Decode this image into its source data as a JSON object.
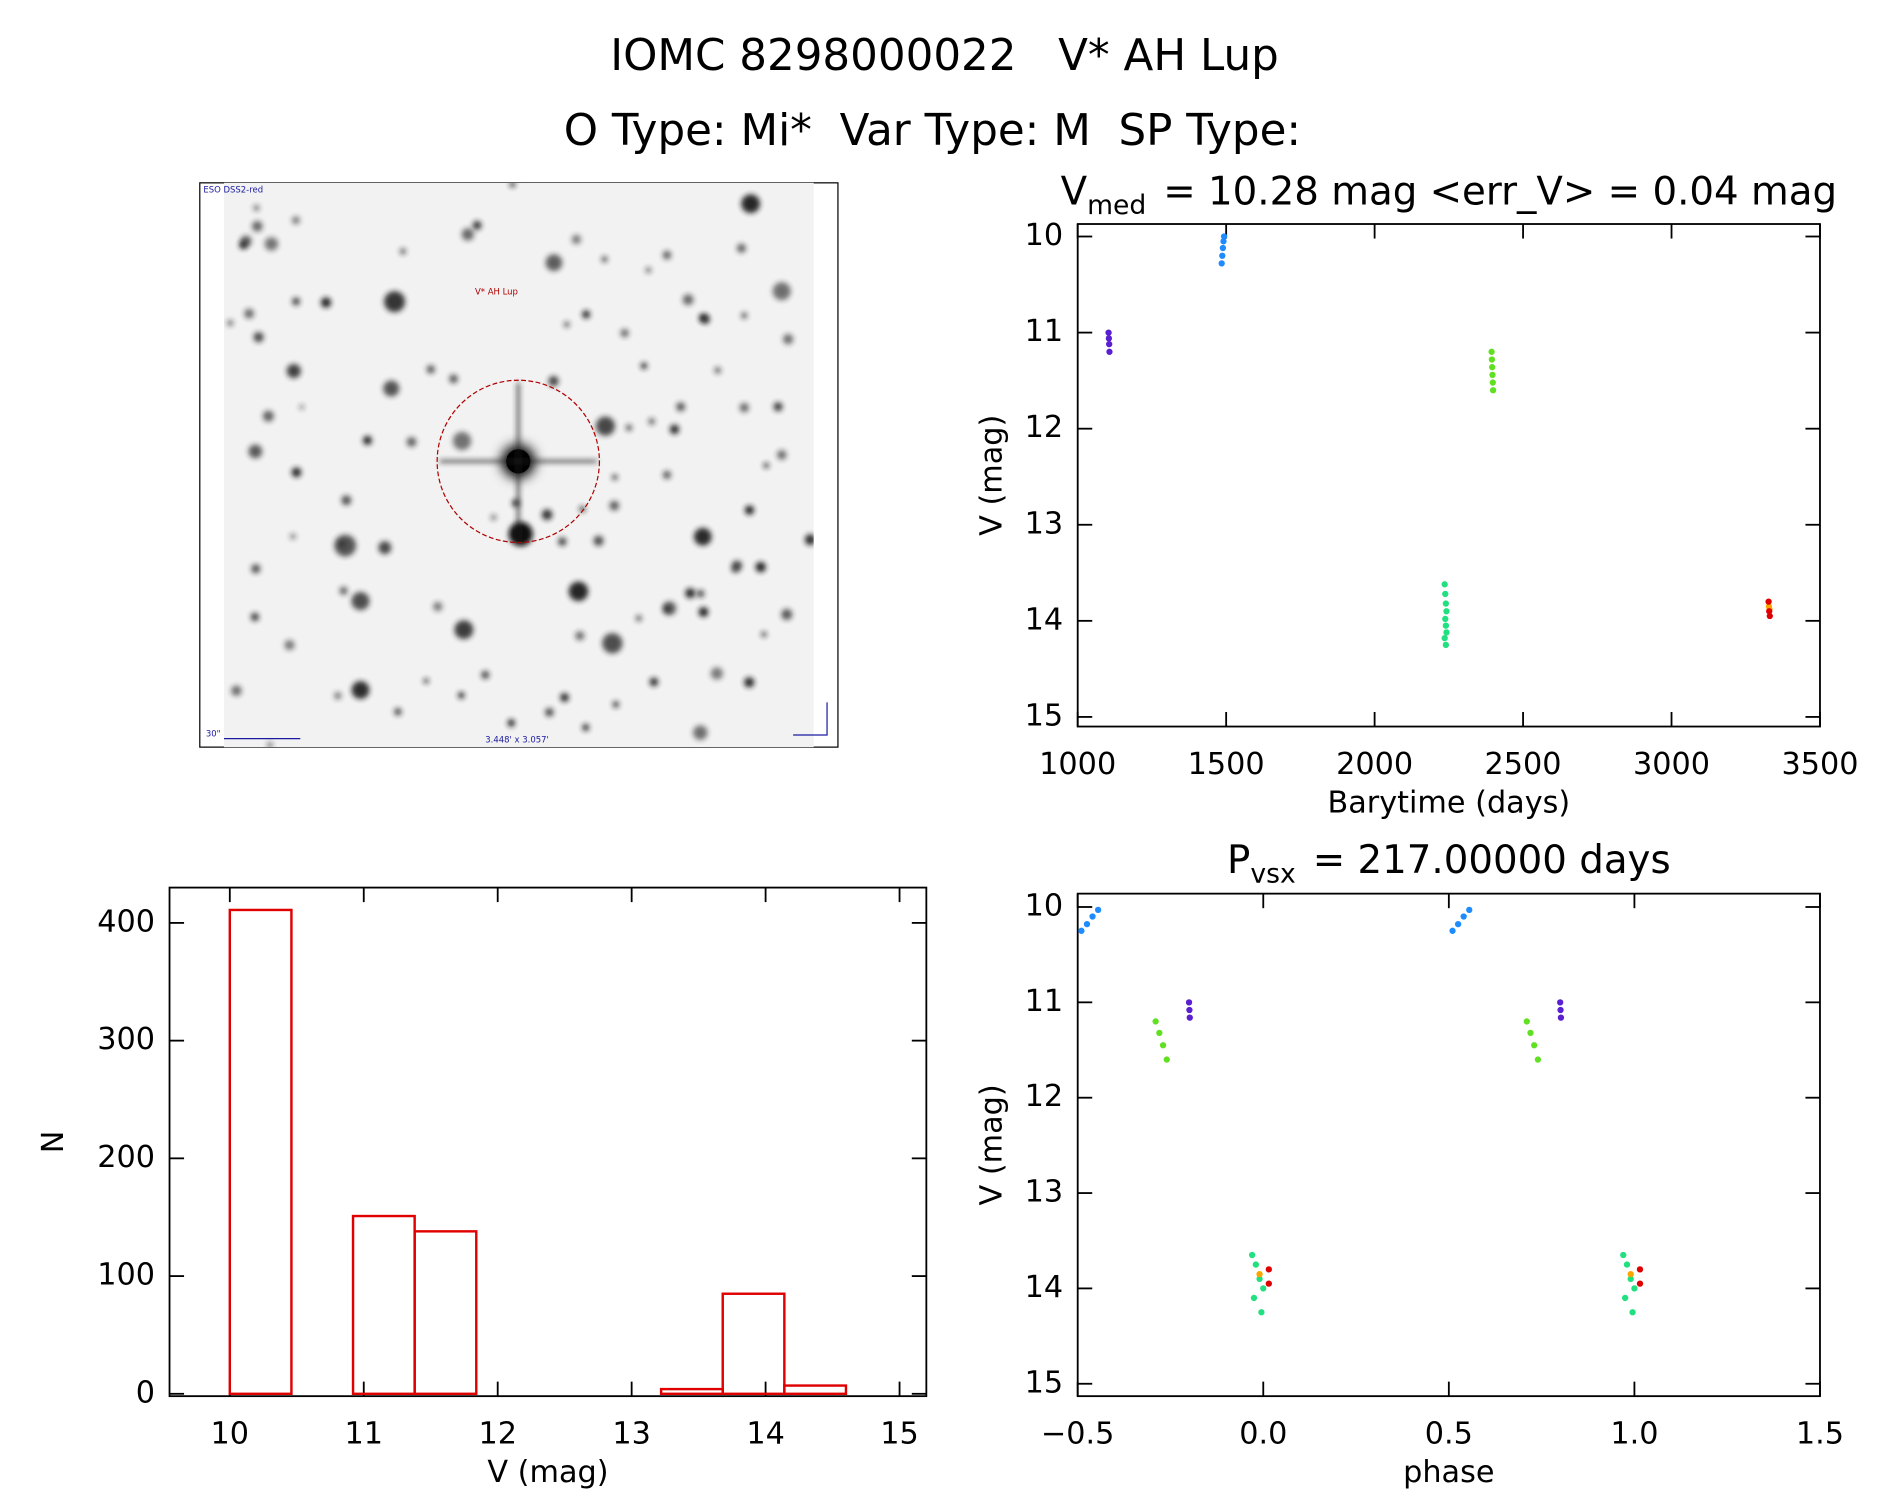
{
  "title": "IOMC 8298000022   V* AH Lup",
  "subtitle": "O Type: Mi*  Var Type: M  SP Type:",
  "image_panel": {
    "survey": "ESO DSS2-red",
    "target": "V* AH Lup",
    "scale": "30\"",
    "field": "3.448' x 3.057'"
  },
  "chart_data": [
    {
      "type": "scatter",
      "title": {
        "main": "V",
        "sub": "med",
        "rest": "= 10.28 mag <err_V> = 0.04 mag"
      },
      "xlabel": "Barytime (days)",
      "ylabel": "V (mag)",
      "xlim": [
        1000,
        3500
      ],
      "xticks": [
        1000,
        1500,
        2000,
        2500,
        3000,
        3500
      ],
      "ylim": [
        15.1,
        9.87
      ],
      "yticks": [
        10,
        11,
        12,
        13,
        14,
        15
      ],
      "series": [
        {
          "color": "#5a1fd0",
          "x": [
            1104,
            1105,
            1106,
            1107
          ],
          "y": [
            11.0,
            11.06,
            11.12,
            11.2
          ]
        },
        {
          "color": "#1e8cff",
          "x": [
            1485,
            1487,
            1489,
            1491,
            1493
          ],
          "y": [
            10.28,
            10.2,
            10.12,
            10.05,
            10.0
          ]
        },
        {
          "color": "#60e020",
          "x": [
            2394,
            2395,
            2396,
            2397,
            2398,
            2399
          ],
          "y": [
            11.2,
            11.28,
            11.36,
            11.44,
            11.52,
            11.6
          ]
        },
        {
          "color": "#20e080",
          "x": [
            2236,
            2238,
            2240,
            2242,
            2238,
            2240,
            2242,
            2236,
            2240
          ],
          "y": [
            13.62,
            13.72,
            13.82,
            13.9,
            13.98,
            14.05,
            14.12,
            14.18,
            14.25
          ]
        },
        {
          "color": "#ffa500",
          "x": [
            3328,
            3330
          ],
          "y": [
            13.85,
            13.88
          ]
        },
        {
          "color": "#e00000",
          "x": [
            3327,
            3329,
            3331
          ],
          "y": [
            13.8,
            13.9,
            13.95
          ]
        }
      ]
    },
    {
      "type": "scatter",
      "title": {
        "main": "P",
        "sub": "vsx",
        "rest": "= 217.00000 days"
      },
      "xlabel": "phase",
      "ylabel": "V (mag)",
      "xlim": [
        -0.5,
        1.5
      ],
      "xticks": [
        {
          "value": -0.5,
          "label": "−0.5"
        },
        {
          "value": 0,
          "label": "0.0"
        },
        {
          "value": 0.5,
          "label": "0.5"
        },
        {
          "value": 1,
          "label": "1.0"
        },
        {
          "value": 1.5,
          "label": "1.5"
        }
      ],
      "ylim": [
        15.13,
        9.86
      ],
      "yticks": [
        10,
        11,
        12,
        13,
        14,
        15
      ],
      "series": [
        {
          "color": "#5a1fd0",
          "x": [
            -0.2,
            -0.199,
            -0.198,
            0.8,
            0.801,
            0.802
          ],
          "y": [
            11.0,
            11.08,
            11.16,
            11.0,
            11.08,
            11.16
          ]
        },
        {
          "color": "#1e8cff",
          "x": [
            -0.49,
            -0.475,
            -0.46,
            -0.445,
            0.51,
            0.525,
            0.54,
            0.555
          ],
          "y": [
            10.25,
            10.18,
            10.1,
            10.03,
            10.25,
            10.18,
            10.1,
            10.03
          ]
        },
        {
          "color": "#60e020",
          "x": [
            -0.29,
            -0.28,
            -0.27,
            -0.26,
            0.71,
            0.72,
            0.73,
            0.74
          ],
          "y": [
            11.2,
            11.32,
            11.45,
            11.6,
            11.2,
            11.32,
            11.45,
            11.6
          ]
        },
        {
          "color": "#20e080",
          "x": [
            -0.03,
            -0.02,
            -0.01,
            0.0,
            -0.025,
            -0.005,
            0.97,
            0.98,
            0.99,
            1.0,
            0.975,
            0.995
          ],
          "y": [
            13.65,
            13.75,
            13.9,
            14.0,
            14.1,
            14.25,
            13.65,
            13.75,
            13.9,
            14.0,
            14.1,
            14.25
          ]
        },
        {
          "color": "#ffa500",
          "x": [
            -0.01,
            0.99
          ],
          "y": [
            13.85,
            13.85
          ]
        },
        {
          "color": "#e00000",
          "x": [
            0.015,
            0.015,
            1.015,
            1.015
          ],
          "y": [
            13.8,
            13.95,
            13.8,
            13.95
          ]
        }
      ]
    },
    {
      "type": "histogram",
      "xlabel": "V (mag)",
      "ylabel": "N",
      "color": "#e00000",
      "bins": [
        10.0,
        10.46,
        10.92,
        11.38,
        11.84,
        12.3,
        12.76,
        13.22,
        13.68,
        14.14,
        14.6
      ],
      "counts": [
        411,
        0,
        151,
        138,
        0,
        0,
        0,
        4,
        85,
        7
      ],
      "xlim": [
        9.55,
        15.2
      ],
      "xticks": [
        10,
        11,
        12,
        13,
        14,
        15
      ],
      "ylim": [
        -2,
        430
      ],
      "yticks": [
        0,
        100,
        200,
        300,
        400
      ]
    }
  ]
}
